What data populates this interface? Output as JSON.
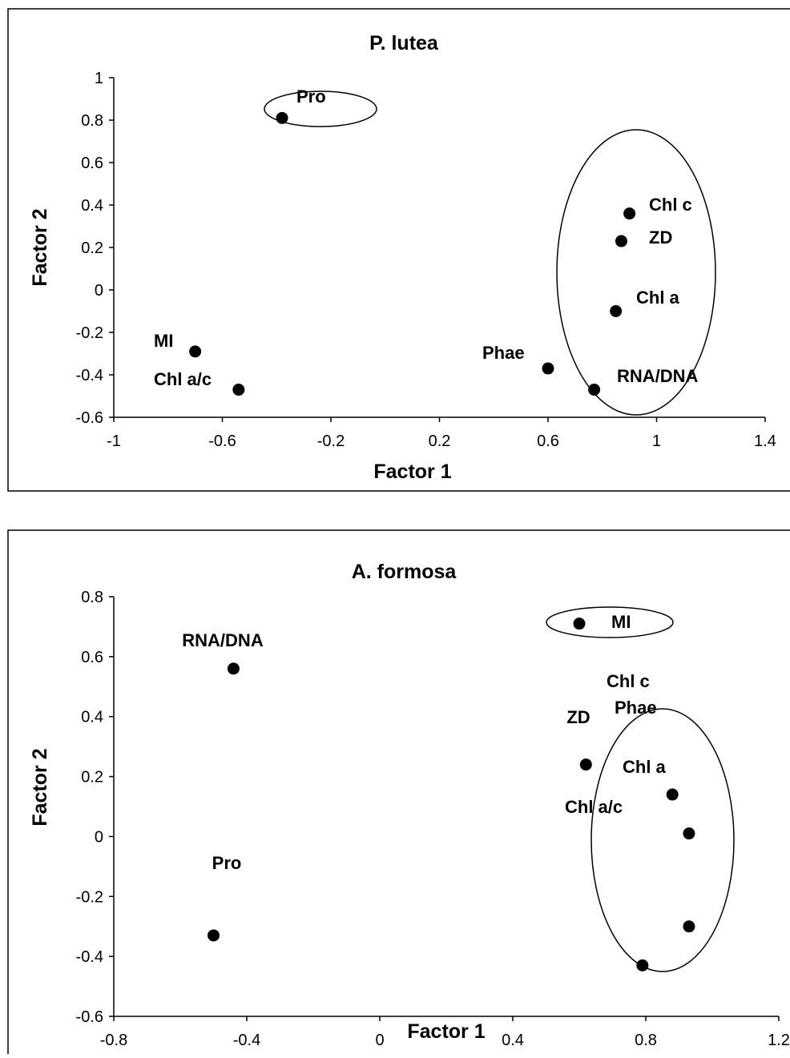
{
  "chart_data": [
    {
      "type": "scatter",
      "title": "P. lutea",
      "xlabel": "Factor 1",
      "ylabel": "Factor 2",
      "xlim": [
        -1,
        1.4
      ],
      "ylim": [
        -0.6,
        1
      ],
      "xticks": [
        "-1",
        "-0.6",
        "-0.2",
        "0.2",
        "0.6",
        "1",
        "1.4"
      ],
      "yticks": [
        "-0.6",
        "-0.4",
        "-0.2",
        "0",
        "0.2",
        "0.4",
        "0.6",
        "0.8",
        "1"
      ],
      "grid": false,
      "points": [
        {
          "label": "Pro",
          "x": -0.38,
          "y": 0.81
        },
        {
          "label": "Chl c",
          "x": 0.9,
          "y": 0.36
        },
        {
          "label": "ZD",
          "x": 0.87,
          "y": 0.23
        },
        {
          "label": "Chl a",
          "x": 0.85,
          "y": -0.1
        },
        {
          "label": "Phae",
          "x": 0.6,
          "y": -0.37
        },
        {
          "label": "RNA/DNA",
          "x": 0.77,
          "y": -0.47
        },
        {
          "label": "MI",
          "x": -0.7,
          "y": -0.29
        },
        {
          "label": "Chl a/c",
          "x": -0.54,
          "y": -0.47
        }
      ],
      "groups": [
        [
          "Pro"
        ],
        [
          "Chl c",
          "ZD",
          "Chl a",
          "RNA/DNA"
        ]
      ]
    },
    {
      "type": "scatter",
      "title": "A. formosa",
      "xlabel": "Factor 1",
      "ylabel": "Factor 2",
      "xlim": [
        -0.8,
        1.2
      ],
      "ylim": [
        -0.6,
        0.8
      ],
      "xticks": [
        "-0.8",
        "-0.4",
        "0",
        "0.4",
        "0.8",
        "1.2"
      ],
      "yticks": [
        "-0.6",
        "-0.4",
        "-0.2",
        "0",
        "0.2",
        "0.4",
        "0.6",
        "0.8"
      ],
      "grid": false,
      "points": [
        {
          "label": "MI",
          "x": 0.6,
          "y": 0.71
        },
        {
          "label": "RNA/DNA",
          "x": -0.44,
          "y": 0.56
        },
        {
          "label": "ZD",
          "x": 0.62,
          "y": 0.24
        },
        {
          "label": "Chl c",
          "x": 0.88,
          "y": 0.14
        },
        {
          "label": "Phae",
          "x": 0.93,
          "y": 0.01
        },
        {
          "label": "Chl a",
          "x": 0.93,
          "y": -0.3
        },
        {
          "label": "Chl a/c",
          "x": 0.79,
          "y": -0.43
        },
        {
          "label": "Pro",
          "x": -0.5,
          "y": -0.33
        }
      ],
      "groups": [
        [
          "MI"
        ],
        [
          "Chl c",
          "Phae",
          "Chl a",
          "Chl a/c"
        ]
      ]
    }
  ]
}
